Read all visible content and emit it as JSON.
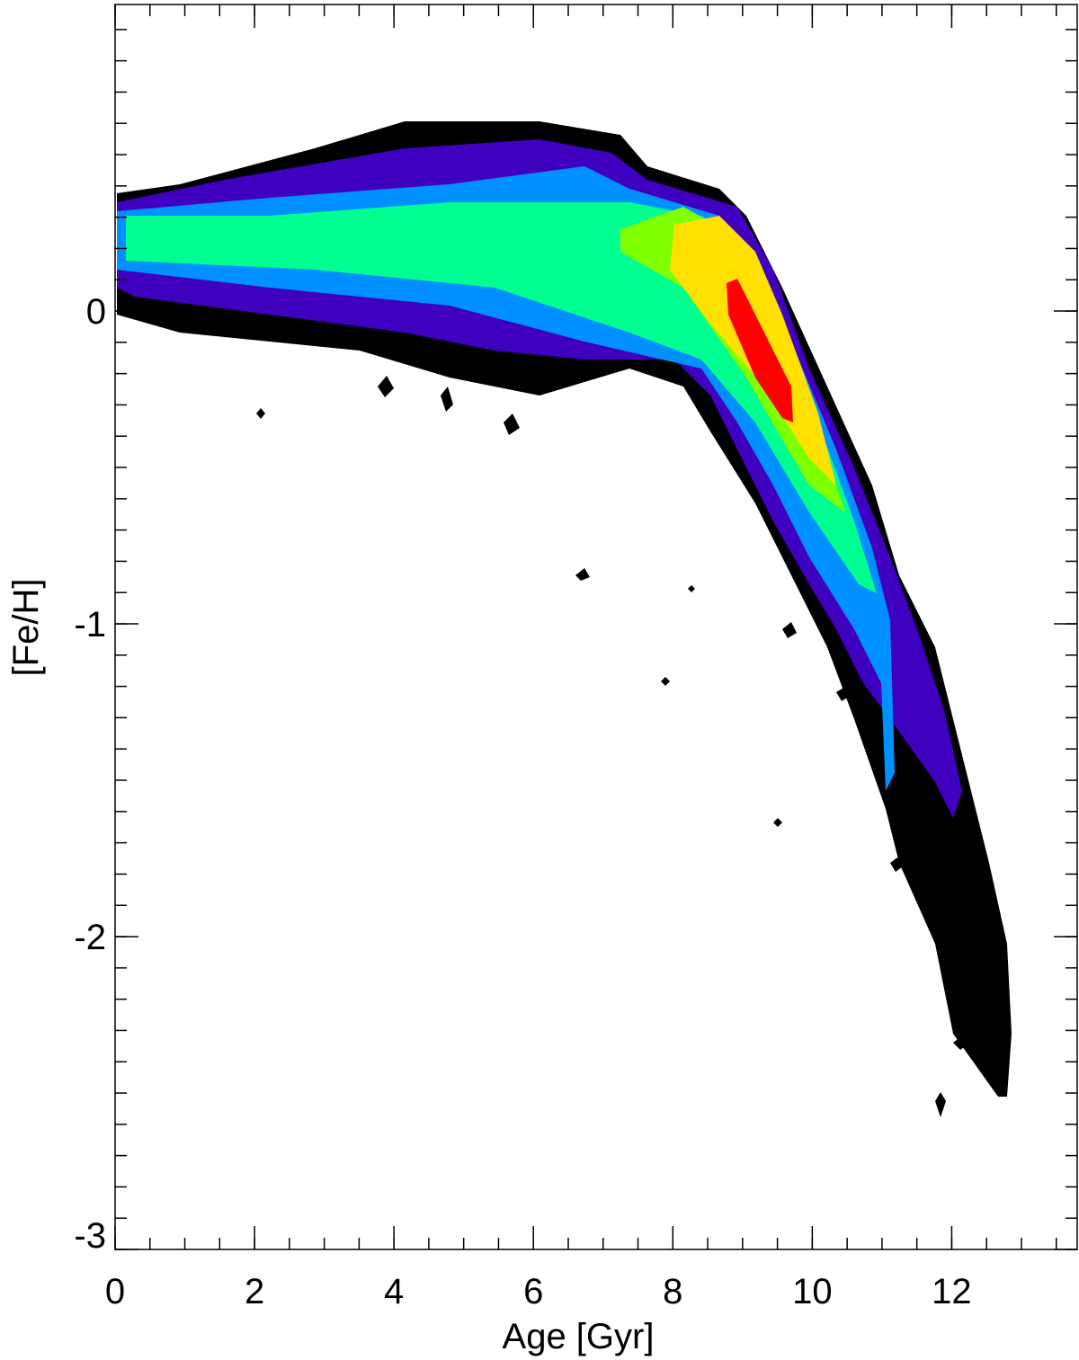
{
  "chart_data": {
    "type": "contour",
    "x_label": "Age [Gyr]",
    "y_label": "[Fe/H]",
    "xlim": [
      0,
      13.8
    ],
    "ylim": [
      -3,
      0.98
    ],
    "xticks": [
      0,
      2,
      4,
      6,
      8,
      10,
      12
    ],
    "yticks": [
      -3,
      -2,
      -1,
      0
    ],
    "xminor": 0.5,
    "yminor": 0.1
  }
}
